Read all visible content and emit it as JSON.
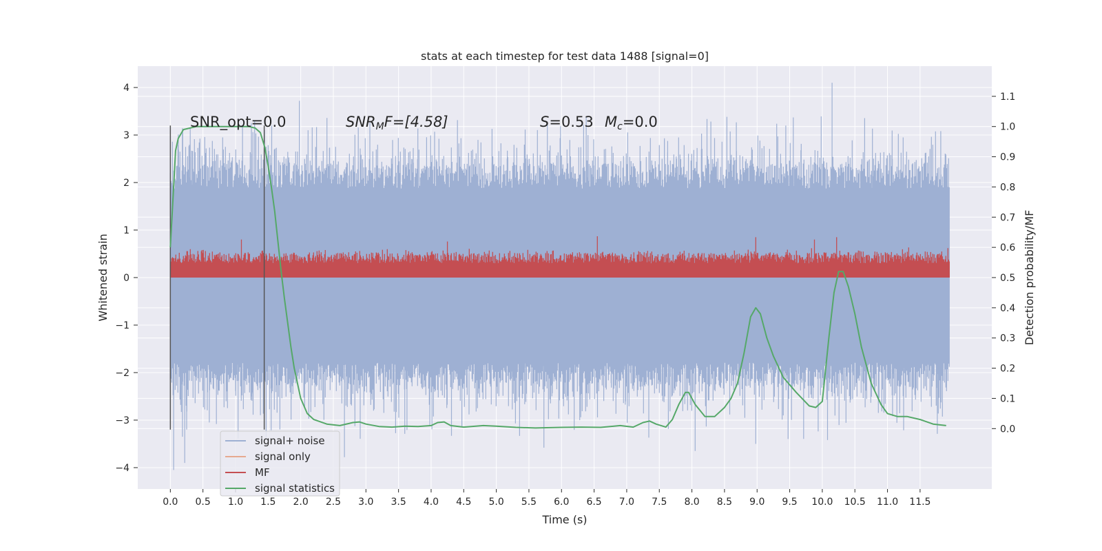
{
  "chart_data": {
    "type": "line",
    "title": "stats at each timestep for test data 1488 [signal=0]",
    "xlabel": "Time (s)",
    "ylabel": "Whitened strain",
    "y2label": "Detection probability/MF",
    "xlim": [
      -0.5,
      12.6
    ],
    "ylim": [
      -4.45,
      4.45
    ],
    "y2lim": [
      -0.2,
      1.2
    ],
    "xticks": [
      "0.0",
      "0.5",
      "1.0",
      "1.5",
      "2.0",
      "2.5",
      "3.0",
      "3.5",
      "4.0",
      "4.5",
      "5.0",
      "5.5",
      "6.0",
      "6.5",
      "7.0",
      "7.5",
      "8.0",
      "8.5",
      "9.0",
      "9.5",
      "10.0",
      "10.5",
      "11.0",
      "11.5"
    ],
    "yticks": [
      "4",
      "3",
      "2",
      "1",
      "0",
      "−1",
      "−2",
      "−3",
      "−4"
    ],
    "y2ticks": [
      "1.1",
      "1.0",
      "0.9",
      "0.8",
      "0.7",
      "0.6",
      "0.5",
      "0.4",
      "0.3",
      "0.2",
      "0.1",
      "0.0"
    ],
    "grid": true,
    "legend": {
      "position": "lower-left",
      "entries": [
        "signal+ noise",
        "signal only",
        "MF",
        "signal statistics"
      ]
    },
    "annotations": {
      "snr_opt": "SNR_opt=0.0",
      "snr_mf_name": "SNR",
      "snr_mf_sub": "M",
      "snr_mf_rest": "F=[4.58]",
      "s_name": "S",
      "s_value": "=0.53",
      "mc_name": "M",
      "mc_sub": "c",
      "mc_value": "=0.0"
    },
    "window_markers_x": [
      0.0,
      1.44
    ],
    "window_markers_y": [
      -3.2,
      3.2
    ],
    "noise": {
      "x_range": [
        0.0,
        11.95
      ],
      "dense_band": [
        -1.3,
        1.3
      ],
      "typical_extent": [
        -2.3,
        2.4
      ],
      "extreme_peaks": [
        [
          0.05,
          -4.05
        ],
        [
          0.22,
          -3.9
        ],
        [
          1.98,
          3.72
        ],
        [
          10.15,
          4.1
        ],
        [
          5.73,
          -3.58
        ],
        [
          10.08,
          -3.42
        ],
        [
          8.05,
          -3.65
        ],
        [
          8.98,
          -3.5
        ],
        [
          2.67,
          -3.78
        ]
      ]
    },
    "mf": {
      "x_range": [
        0.0,
        11.95
      ],
      "baseline": 0.0,
      "typical_max": 0.6,
      "spikes": [
        [
          1.09,
          0.8
        ],
        [
          8.98,
          0.85
        ],
        [
          10.22,
          0.85
        ],
        [
          6.55,
          0.87
        ],
        [
          9.88,
          0.8
        ],
        [
          4.25,
          0.76
        ]
      ]
    },
    "signal_statistics": {
      "x": [
        0.0,
        0.05,
        0.08,
        0.12,
        0.2,
        0.4,
        0.7,
        1.0,
        1.2,
        1.3,
        1.38,
        1.45,
        1.5,
        1.55,
        1.6,
        1.65,
        1.7,
        1.75,
        1.8,
        1.85,
        1.9,
        2.0,
        2.1,
        2.2,
        2.4,
        2.6,
        2.8,
        2.9,
        3.0,
        3.2,
        3.4,
        3.6,
        3.8,
        4.0,
        4.1,
        4.2,
        4.3,
        4.5,
        4.8,
        5.0,
        5.3,
        5.6,
        6.0,
        6.3,
        6.6,
        6.9,
        7.1,
        7.25,
        7.35,
        7.45,
        7.6,
        7.7,
        7.8,
        7.9,
        7.95,
        8.05,
        8.2,
        8.35,
        8.5,
        8.6,
        8.7,
        8.8,
        8.9,
        8.98,
        9.05,
        9.15,
        9.25,
        9.4,
        9.6,
        9.8,
        9.9,
        10.0,
        10.1,
        10.18,
        10.25,
        10.32,
        10.4,
        10.5,
        10.6,
        10.75,
        10.9,
        11.0,
        11.15,
        11.3,
        11.5,
        11.7,
        11.9
      ],
      "y": [
        0.6,
        0.8,
        0.92,
        0.96,
        0.99,
        1.0,
        1.0,
        1.0,
        1.0,
        0.995,
        0.98,
        0.93,
        0.87,
        0.8,
        0.72,
        0.62,
        0.52,
        0.43,
        0.35,
        0.27,
        0.2,
        0.1,
        0.05,
        0.03,
        0.015,
        0.01,
        0.02,
        0.022,
        0.015,
        0.007,
        0.005,
        0.008,
        0.007,
        0.01,
        0.02,
        0.022,
        0.01,
        0.005,
        0.01,
        0.008,
        0.004,
        0.002,
        0.004,
        0.005,
        0.004,
        0.01,
        0.005,
        0.02,
        0.025,
        0.015,
        0.005,
        0.03,
        0.08,
        0.12,
        0.12,
        0.08,
        0.04,
        0.04,
        0.07,
        0.1,
        0.15,
        0.25,
        0.37,
        0.4,
        0.38,
        0.3,
        0.24,
        0.17,
        0.12,
        0.075,
        0.07,
        0.09,
        0.3,
        0.45,
        0.52,
        0.52,
        0.47,
        0.38,
        0.27,
        0.15,
        0.08,
        0.05,
        0.04,
        0.04,
        0.03,
        0.015,
        0.01
      ]
    },
    "colors": {
      "noise": "#9eb0d3",
      "signal_only": "#e6a98f",
      "mf": "#c44e52",
      "stats": "#55a868",
      "background": "#eaeaf2",
      "grid": "#ffffff",
      "marker": "#555555"
    }
  }
}
